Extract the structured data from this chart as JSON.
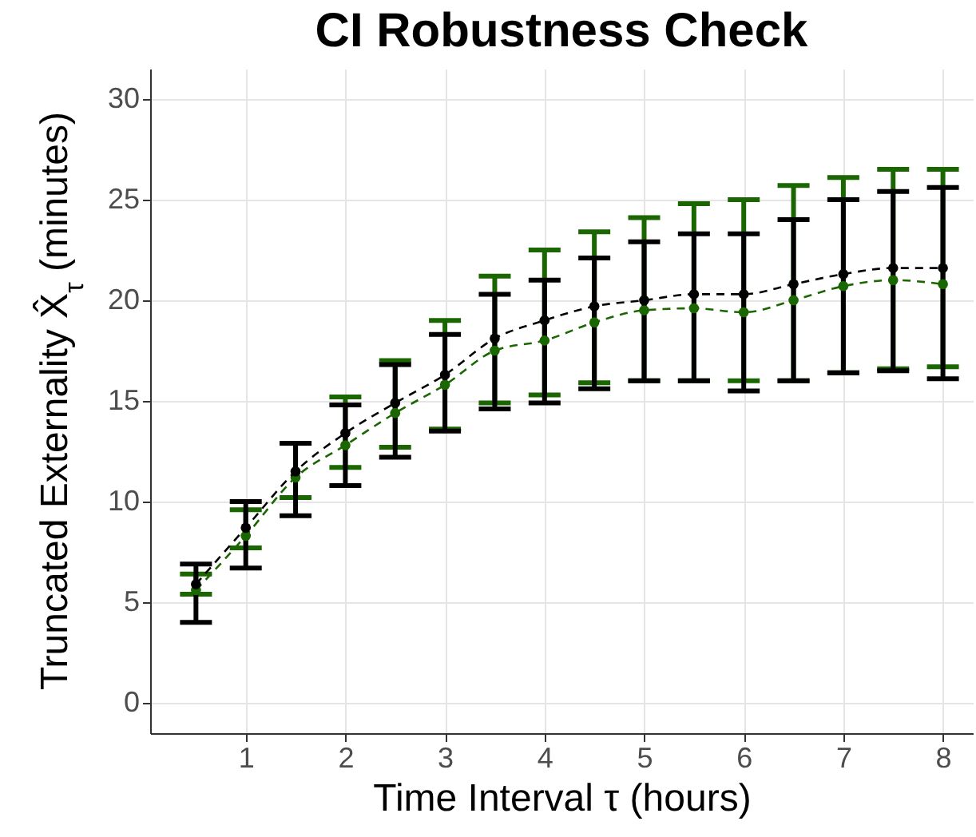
{
  "chart_data": {
    "type": "line",
    "title": "CI Robustness Check",
    "xlabel": "Time Interval τ (hours)",
    "ylabel": "Truncated Externality X̂$_{τ}$ (minutes)",
    "x": [
      0.5,
      1,
      1.5,
      2,
      2.5,
      3,
      3.5,
      4,
      4.5,
      5,
      5.5,
      6,
      6.5,
      7,
      7.5,
      8
    ],
    "series": [
      {
        "color": "#1a6600",
        "values": [
          5.6,
          8.3,
          11.2,
          12.8,
          14.4,
          15.8,
          17.5,
          18.0,
          18.9,
          19.5,
          19.6,
          19.4,
          20.0,
          20.7,
          21.0,
          20.8
        ],
        "errors": [
          [
            5.4,
            6.4
          ],
          [
            7.7,
            9.6
          ],
          [
            10.2,
            12.9
          ],
          [
            11.7,
            15.2
          ],
          [
            12.7,
            17.0
          ],
          [
            13.6,
            19.0
          ],
          [
            14.9,
            21.2
          ],
          [
            15.3,
            22.5
          ],
          [
            15.9,
            23.4
          ],
          [
            16.0,
            24.1
          ],
          [
            16.0,
            24.8
          ],
          [
            16.0,
            25.0
          ],
          [
            16.0,
            25.7
          ],
          [
            16.4,
            26.1
          ],
          [
            16.6,
            26.5
          ],
          [
            16.7,
            26.5
          ]
        ]
      },
      {
        "color": "#000000",
        "values": [
          5.9,
          8.7,
          11.5,
          13.4,
          14.9,
          16.3,
          18.1,
          19.0,
          19.7,
          20.0,
          20.3,
          20.3,
          20.8,
          21.3,
          21.6,
          21.6
        ],
        "errors": [
          [
            4.0,
            6.9
          ],
          [
            6.7,
            10.0
          ],
          [
            9.3,
            12.9
          ],
          [
            10.8,
            14.8
          ],
          [
            12.2,
            16.8
          ],
          [
            13.5,
            18.3
          ],
          [
            14.6,
            20.3
          ],
          [
            14.9,
            21.0
          ],
          [
            15.6,
            22.1
          ],
          [
            16.0,
            22.9
          ],
          [
            16.0,
            23.3
          ],
          [
            15.5,
            23.3
          ],
          [
            16.0,
            24.0
          ],
          [
            16.4,
            25.0
          ],
          [
            16.5,
            25.4
          ],
          [
            16.1,
            25.6
          ]
        ]
      }
    ],
    "xlim": [
      0.04,
      8.3
    ],
    "xticks": [
      1,
      2,
      3,
      4,
      5,
      6,
      7,
      8
    ],
    "ylim": [
      -1.5,
      31.5
    ],
    "yticks": [
      0,
      5,
      10,
      15,
      20,
      25,
      30
    ],
    "grid": true,
    "marker": "circle",
    "line_style": "dashed"
  }
}
